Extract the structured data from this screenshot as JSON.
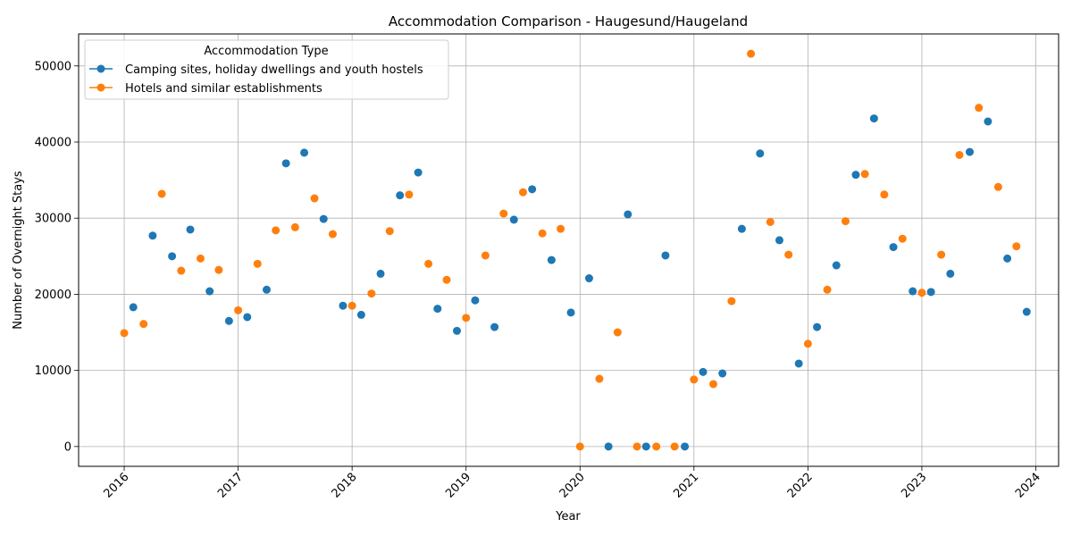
{
  "chart_data": {
    "type": "scatter",
    "title": "Accommodation Comparison - Haugesund/Haugeland",
    "xlabel": "Year",
    "ylabel": "Number of Overnight Stays",
    "xlim": [
      2015.6,
      2024.2
    ],
    "ylim": [
      -2600,
      54200
    ],
    "x_ticks": [
      2016,
      2017,
      2018,
      2019,
      2020,
      2021,
      2022,
      2023,
      2024
    ],
    "x_tick_labels": [
      "2016",
      "2017",
      "2018",
      "2019",
      "2020",
      "2021",
      "2022",
      "2023",
      "2024"
    ],
    "y_ticks": [
      0,
      10000,
      20000,
      30000,
      40000,
      50000
    ],
    "y_tick_labels": [
      "0",
      "10000",
      "20000",
      "30000",
      "40000",
      "50000"
    ],
    "grid": true,
    "legend": {
      "title": "Accommodation Type",
      "placement": "top-left"
    },
    "series": [
      {
        "name": "Camping sites, holiday dwellings and youth hostels",
        "color": "#1f77b4",
        "points": [
          [
            2016.08,
            18300
          ],
          [
            2016.25,
            27700
          ],
          [
            2016.42,
            25000
          ],
          [
            2016.58,
            28500
          ],
          [
            2016.75,
            20400
          ],
          [
            2016.92,
            16500
          ],
          [
            2017.08,
            17000
          ],
          [
            2017.25,
            20600
          ],
          [
            2017.42,
            37200
          ],
          [
            2017.58,
            38600
          ],
          [
            2017.75,
            29900
          ],
          [
            2017.92,
            18500
          ],
          [
            2018.08,
            17300
          ],
          [
            2018.25,
            22700
          ],
          [
            2018.42,
            33000
          ],
          [
            2018.58,
            36000
          ],
          [
            2018.75,
            18100
          ],
          [
            2018.92,
            15200
          ],
          [
            2019.08,
            19200
          ],
          [
            2019.25,
            15700
          ],
          [
            2019.42,
            29800
          ],
          [
            2019.58,
            33800
          ],
          [
            2019.75,
            24500
          ],
          [
            2019.92,
            17600
          ],
          [
            2020.08,
            22100
          ],
          [
            2020.25,
            0
          ],
          [
            2020.42,
            30500
          ],
          [
            2020.58,
            0
          ],
          [
            2020.75,
            25100
          ],
          [
            2020.92,
            0
          ],
          [
            2021.08,
            9800
          ],
          [
            2021.25,
            9600
          ],
          [
            2021.42,
            28600
          ],
          [
            2021.58,
            38500
          ],
          [
            2021.75,
            27100
          ],
          [
            2021.92,
            10900
          ],
          [
            2022.08,
            15700
          ],
          [
            2022.25,
            23800
          ],
          [
            2022.42,
            35700
          ],
          [
            2022.58,
            43100
          ],
          [
            2022.75,
            26200
          ],
          [
            2022.92,
            20400
          ],
          [
            2023.08,
            20300
          ],
          [
            2023.25,
            22700
          ],
          [
            2023.42,
            38700
          ],
          [
            2023.58,
            42700
          ],
          [
            2023.75,
            24700
          ],
          [
            2023.92,
            17700
          ]
        ]
      },
      {
        "name": "Hotels and similar establishments",
        "color": "#ff7f0e",
        "points": [
          [
            2016.0,
            14900
          ],
          [
            2016.17,
            16100
          ],
          [
            2016.33,
            33200
          ],
          [
            2016.5,
            23100
          ],
          [
            2016.67,
            24700
          ],
          [
            2016.83,
            23200
          ],
          [
            2017.0,
            17900
          ],
          [
            2017.17,
            24000
          ],
          [
            2017.33,
            28400
          ],
          [
            2017.5,
            28800
          ],
          [
            2017.67,
            32600
          ],
          [
            2017.83,
            27900
          ],
          [
            2018.0,
            18500
          ],
          [
            2018.17,
            20100
          ],
          [
            2018.33,
            28300
          ],
          [
            2018.5,
            33100
          ],
          [
            2018.67,
            24000
          ],
          [
            2018.83,
            21900
          ],
          [
            2019.0,
            16900
          ],
          [
            2019.17,
            25100
          ],
          [
            2019.33,
            30600
          ],
          [
            2019.5,
            33400
          ],
          [
            2019.67,
            28000
          ],
          [
            2019.83,
            28600
          ],
          [
            2020.0,
            0
          ],
          [
            2020.17,
            8900
          ],
          [
            2020.33,
            15000
          ],
          [
            2020.5,
            0
          ],
          [
            2020.67,
            0
          ],
          [
            2020.83,
            0
          ],
          [
            2021.0,
            8800
          ],
          [
            2021.17,
            8200
          ],
          [
            2021.33,
            19100
          ],
          [
            2021.5,
            51600
          ],
          [
            2021.67,
            29500
          ],
          [
            2021.83,
            25200
          ],
          [
            2022.0,
            13500
          ],
          [
            2022.17,
            20600
          ],
          [
            2022.33,
            29600
          ],
          [
            2022.5,
            35800
          ],
          [
            2022.67,
            33100
          ],
          [
            2022.83,
            27300
          ],
          [
            2023.0,
            20200
          ],
          [
            2023.17,
            25200
          ],
          [
            2023.33,
            38300
          ],
          [
            2023.5,
            44500
          ],
          [
            2023.67,
            34100
          ],
          [
            2023.83,
            26300
          ]
        ]
      }
    ]
  }
}
